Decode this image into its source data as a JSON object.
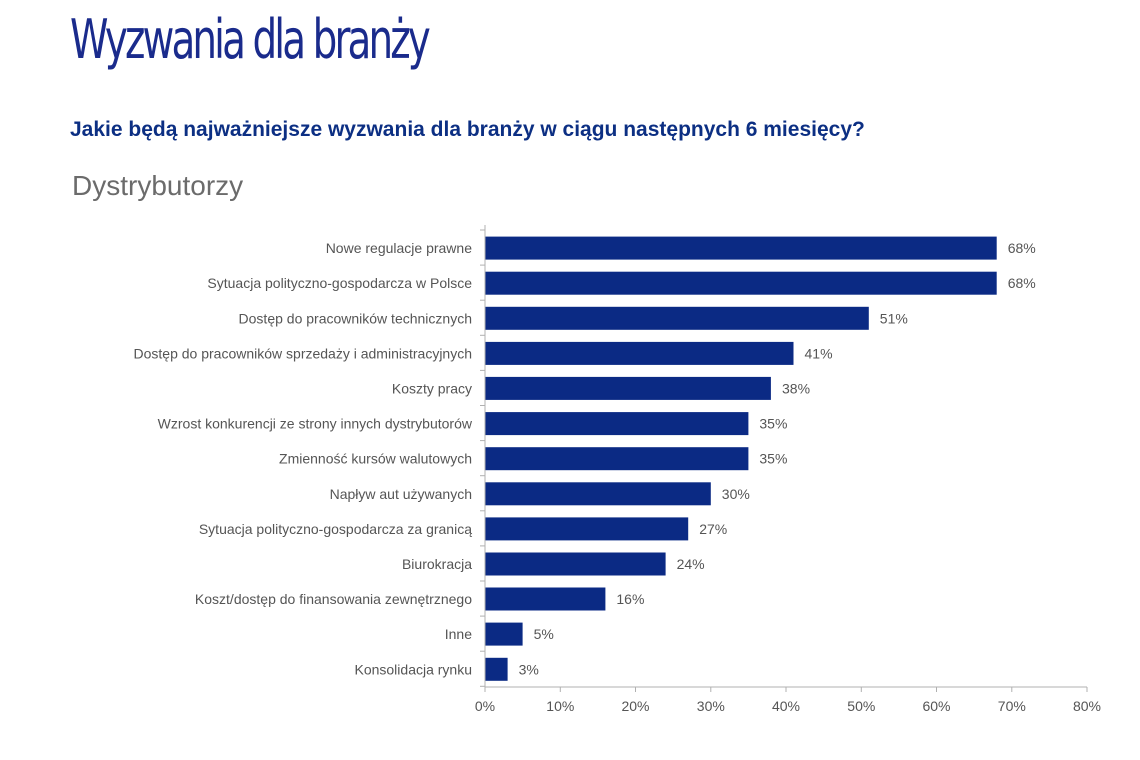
{
  "header": {
    "title": "Wyzwania dla branży",
    "question": "Jakie będą najważniejsze wyzwania dla branży w ciągu następnych 6 miesięcy?",
    "subtitle": "Dystrybutorzy"
  },
  "colors": {
    "bar": "#0b2a84",
    "axis": "#b0b0b0",
    "text": "#555555"
  },
  "chart_data": {
    "type": "bar",
    "orientation": "horizontal",
    "categories": [
      "Nowe regulacje prawne",
      "Sytuacja polityczno-gospodarcza w Polsce",
      "Dostęp do pracowników technicznych",
      "Dostęp do pracowników sprzedaży i administracyjnych",
      "Koszty pracy",
      "Wzrost konkurencji ze strony innych dystrybutorów",
      "Zmienność kursów walutowych",
      "Napływ aut używanych",
      "Sytuacja polityczno-gospodarcza za granicą",
      "Biurokracja",
      "Koszt/dostęp do finansowania zewnętrznego",
      "Inne",
      "Konsolidacja rynku"
    ],
    "values": [
      68,
      68,
      51,
      41,
      38,
      35,
      35,
      30,
      27,
      24,
      16,
      5,
      3
    ],
    "value_labels": [
      "68%",
      "68%",
      "51%",
      "41%",
      "38%",
      "35%",
      "35%",
      "30%",
      "27%",
      "24%",
      "16%",
      "5%",
      "3%"
    ],
    "xlim": [
      0,
      80
    ],
    "x_ticks": [
      0,
      10,
      20,
      30,
      40,
      50,
      60,
      70,
      80
    ],
    "x_tick_labels": [
      "0%",
      "10%",
      "20%",
      "30%",
      "40%",
      "50%",
      "60%",
      "70%",
      "80%"
    ],
    "grid": false,
    "legend": "none"
  }
}
